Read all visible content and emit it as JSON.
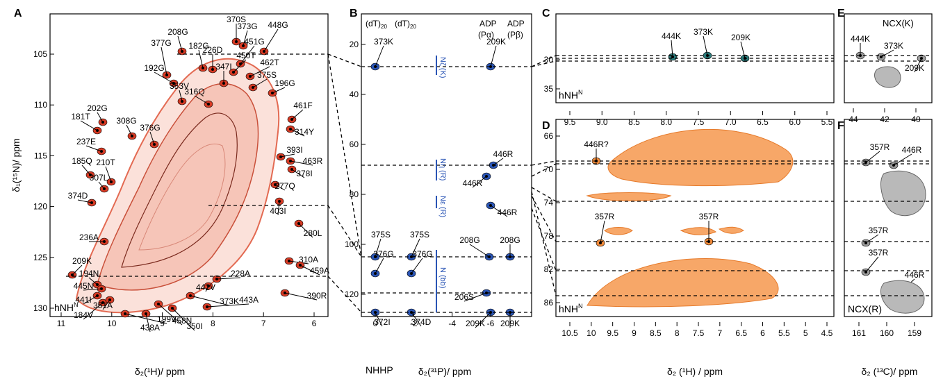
{
  "figure": {
    "panels": {
      "A": {
        "letter": "A",
        "experiment": "hNH",
        "experiment_sup": "N",
        "xlabel": "δ₂(¹H)/ ppm",
        "ylabel": "δ₁(¹⁵N)/ ppm",
        "xticks": [
          "11",
          "10",
          "9",
          "8",
          "7",
          "6"
        ],
        "yticks": [
          "105",
          "110",
          "115",
          "120",
          "125",
          "130"
        ],
        "labels": [
          "208G",
          "370S",
          "373G",
          "448G",
          "377G",
          "182G",
          "226D",
          "451G",
          "450T",
          "462T",
          "192G",
          "347I",
          "375S",
          "196G",
          "353V",
          "316Q",
          "461F",
          "202G",
          "181T",
          "308G",
          "314Y",
          "376G",
          "393I",
          "237E",
          "463R",
          "378I",
          "185Q",
          "210T",
          "277Q",
          "307L",
          "374D",
          "403I",
          "280L",
          "236A",
          "310A",
          "459A",
          "209K",
          "194N",
          "445N",
          "228A",
          "441I",
          "442V",
          "184V",
          "390R",
          "351A",
          "373K",
          "443A",
          "199V",
          "458N",
          "350I",
          "438A"
        ]
      },
      "B": {
        "letter": "B",
        "experiment": "NHHP",
        "xlabel": "δ₂(³¹P)/ ppm",
        "top_left_1": "(dT)",
        "top_left_sub": "20",
        "top_right_1": "ADP",
        "top_right_2": "(Pα)",
        "top_right_3": "ADP",
        "top_right_4": "(Pβ)",
        "xticks": [
          "0",
          "-2",
          "-4",
          "-6"
        ],
        "yticks": [
          "20",
          "40",
          "60",
          "80",
          "100",
          "120"
        ],
        "side_labels": [
          "Nζ (K)",
          "Nη (R)",
          "Nε (R)",
          "N (bb)"
        ],
        "labels": [
          "373K",
          "209K",
          "446R",
          "446R",
          "446R",
          "375S",
          "375S",
          "208G",
          "208G",
          "376G",
          "376G",
          "206S",
          "372I",
          "374D",
          "209K",
          "209K"
        ]
      },
      "C": {
        "letter": "C",
        "experiment": "hNH",
        "experiment_sup": "N",
        "yticks": [
          "30",
          "35"
        ],
        "labels": [
          "444K",
          "373K",
          "209K"
        ]
      },
      "D": {
        "letter": "D",
        "experiment": "hNH",
        "experiment_sup": "N",
        "xlabel": "δ₂ (¹H) / ppm",
        "xticks": [
          "10.5",
          "10",
          "9.5",
          "9",
          "8.5",
          "8",
          "7.5",
          "7",
          "6.5",
          "6",
          "5.5",
          "5",
          "4.5"
        ],
        "xticks_top": [
          "9.5",
          "9.0",
          "8.5",
          "8.0",
          "7.5",
          "7.0",
          "6.5",
          "6.0",
          "5.5"
        ],
        "yticks": [
          "66",
          "70",
          "74",
          "78",
          "82",
          "86"
        ],
        "labels": [
          "446R?",
          "357R",
          "357R"
        ]
      },
      "E": {
        "letter": "E",
        "title": "NCX(K)",
        "xticks": [
          "44",
          "42",
          "40"
        ],
        "labels": [
          "444K",
          "373K",
          "209K"
        ]
      },
      "F": {
        "letter": "F",
        "title": "NCX(R)",
        "xlabel": "δ₂ (¹³C)/ ppm",
        "xticks": [
          "161",
          "160",
          "159"
        ],
        "labels": [
          "357R",
          "446R",
          "357R",
          "357R",
          "446R"
        ]
      }
    },
    "colors": {
      "A_outer": "#d63a24",
      "A_inner": "#f2b8a8",
      "B_peaks": "#2a55b5",
      "C_peaks": "#2b7a7a",
      "D_peaks": "#f08a3a",
      "EF_peaks": "#9a9a9a"
    }
  }
}
